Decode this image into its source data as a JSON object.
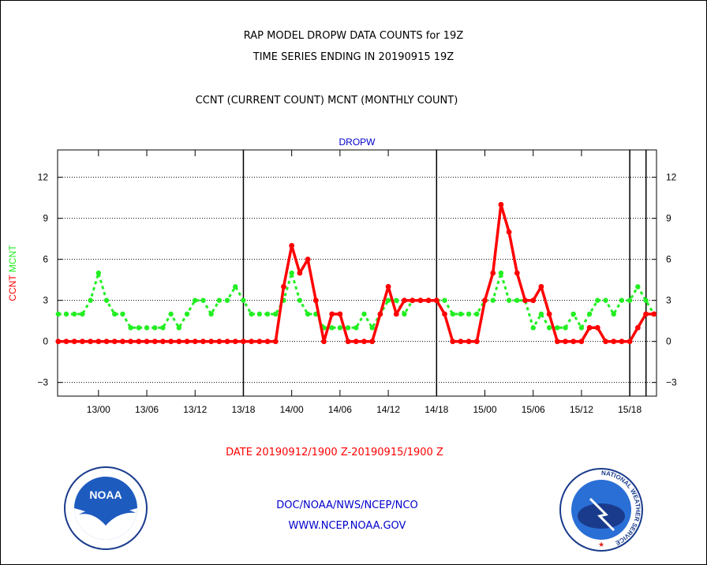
{
  "header": {
    "title_line1": "RAP MODEL DROPW DATA COUNTS for 19Z",
    "title_line2": "TIME SERIES ENDING IN 20190915 19Z",
    "subtitle": "CCNT (CURRENT COUNT) MCNT (MONTHLY COUNT)"
  },
  "footer": {
    "date_range": "DATE 20190912/1900 Z-20190915/1900 Z",
    "org": "DOC/NOAA/NWS/NCEP/NCO",
    "website": "WWW.NCEP.NOAA.GOV"
  },
  "logos": {
    "left": "NOAA",
    "right_ring_text": "NATIONAL WEATHER SERVICE"
  },
  "colors": {
    "ccnt": "#ff0000",
    "mcnt": "#22ee22",
    "panel_title": "#0000cc",
    "axis": "#000000"
  },
  "chart_data": {
    "type": "line",
    "title": "DROPW",
    "ylabel_series": [
      "CCNT",
      "MCNT"
    ],
    "ylim": [
      -4,
      14
    ],
    "yticks": [
      -3,
      0,
      3,
      6,
      9,
      12
    ],
    "x_tick_labels": [
      "13/00",
      "13/06",
      "13/12",
      "13/18",
      "14/00",
      "14/06",
      "14/12",
      "14/18",
      "15/00",
      "15/06",
      "15/12",
      "15/18"
    ],
    "x_tick_hours": [
      5,
      11,
      17,
      23,
      29,
      35,
      41,
      47,
      53,
      59,
      65,
      71
    ],
    "day_boundaries_hours": [
      23,
      47,
      71
    ],
    "grid": true,
    "series": [
      {
        "name": "CCNT",
        "color": "#ff0000",
        "values": [
          0,
          0,
          0,
          0,
          0,
          0,
          0,
          0,
          0,
          0,
          0,
          0,
          0,
          0,
          0,
          0,
          0,
          0,
          0,
          0,
          0,
          0,
          0,
          0,
          0,
          0,
          0,
          0,
          4,
          7,
          5,
          6,
          3,
          0,
          2,
          2,
          0,
          0,
          0,
          0,
          2,
          4,
          2,
          3,
          3,
          3,
          3,
          3,
          2,
          0,
          0,
          0,
          0,
          3,
          5,
          10,
          8,
          5,
          3,
          3,
          4,
          2,
          0,
          0,
          0,
          0,
          1,
          1,
          0,
          0,
          0,
          0,
          1,
          2,
          2
        ]
      },
      {
        "name": "MCNT",
        "color": "#22ee22",
        "values": [
          2,
          2,
          2,
          2,
          3,
          5,
          3,
          2,
          2,
          1,
          1,
          1,
          1,
          1,
          2,
          1,
          2,
          3,
          3,
          2,
          3,
          3,
          4,
          3,
          2,
          2,
          2,
          2,
          3,
          5,
          3,
          2,
          2,
          1,
          1,
          1,
          1,
          1,
          2,
          1,
          2,
          3,
          3,
          2,
          3,
          3,
          3,
          3,
          3,
          2,
          2,
          2,
          2,
          3,
          3,
          5,
          3,
          3,
          3,
          1,
          2,
          1,
          1,
          1,
          2,
          1,
          2,
          3,
          3,
          2,
          3,
          3,
          4,
          3,
          2
        ]
      }
    ]
  }
}
